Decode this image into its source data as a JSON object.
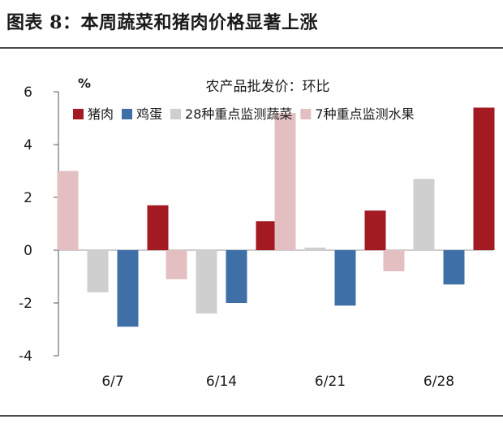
{
  "figure_title": "图表 8：本周蔬菜和猪肉价格显著上涨",
  "chart_data": {
    "type": "bar",
    "title": "农产品批发价：环比",
    "ylabel": "%",
    "xlabel": "",
    "ylim": [
      -4,
      6
    ],
    "yticks": [
      -4,
      -2,
      0,
      2,
      4,
      6
    ],
    "categories": [
      "6/7",
      "6/14",
      "6/21",
      "6/28"
    ],
    "series": [
      {
        "name": "7种重点监测水果",
        "color": "#e3bfc1",
        "values": [
          3.0,
          -1.1,
          5.2,
          -0.8
        ]
      },
      {
        "name": "28种重点监测蔬菜",
        "color": "#cfcfcf",
        "values": [
          -1.6,
          -2.4,
          0.1,
          2.7
        ]
      },
      {
        "name": "鸡蛋",
        "color": "#3f6fa7",
        "values": [
          -2.9,
          -2.0,
          -2.1,
          -1.3
        ]
      },
      {
        "name": "猪肉",
        "color": "#a31a23",
        "values": [
          1.7,
          1.1,
          1.5,
          5.4
        ]
      }
    ],
    "legend_order": [
      "猪肉",
      "鸡蛋",
      "28种重点监测蔬菜",
      "7种重点监测水果"
    ],
    "legend": "top",
    "grid": false
  }
}
